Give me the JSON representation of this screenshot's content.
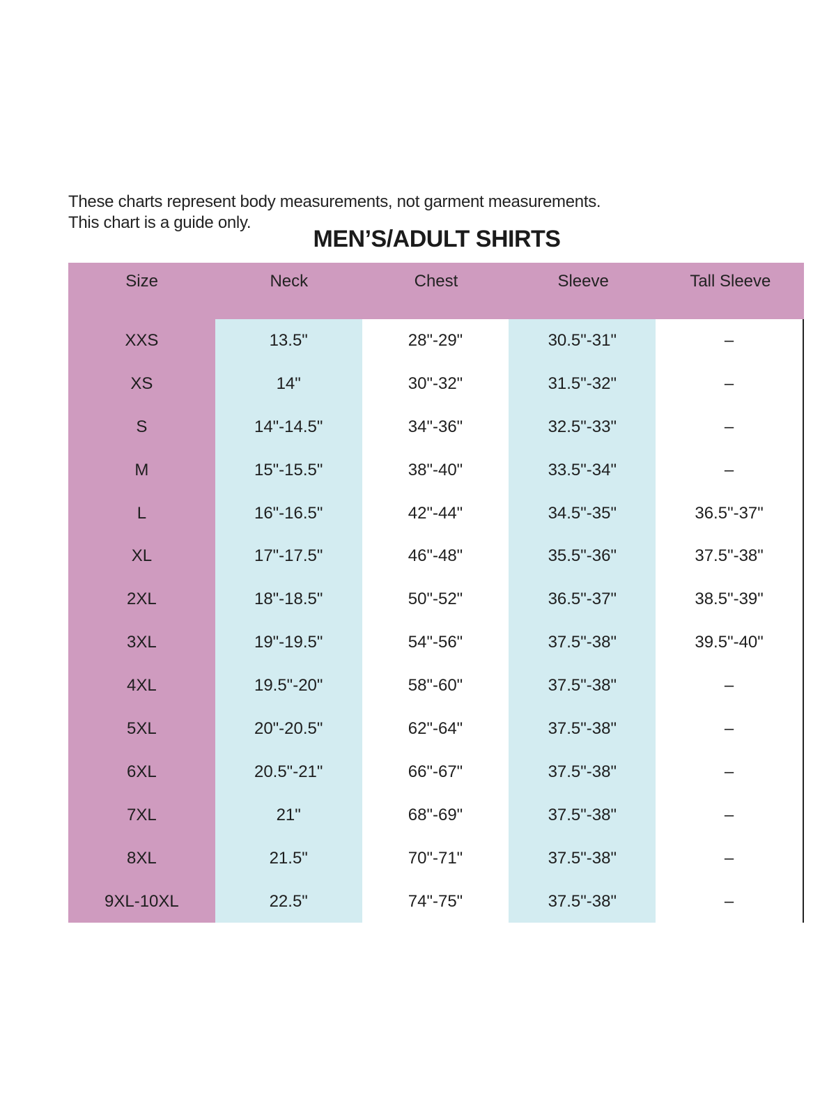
{
  "notes": [
    "These charts represent body measurements, not garment measurements.",
    "This chart is a guide only."
  ],
  "title": "MEN’S/ADULT SHIRTS",
  "colors": {
    "header_and_size_column": "#cf9bbf",
    "neck_and_sleeve_columns": "#d3ecf1"
  },
  "columns": [
    "Size",
    "Neck",
    "Chest",
    "Sleeve",
    "Tall Sleeve"
  ],
  "rows": [
    [
      "XXS",
      "13.5\"",
      "28\"-29\"",
      "30.5\"-31\"",
      "–"
    ],
    [
      "XS",
      "14\"",
      "30\"-32\"",
      "31.5\"-32\"",
      "–"
    ],
    [
      "S",
      "14\"-14.5\"",
      "34\"-36\"",
      "32.5\"-33\"",
      "–"
    ],
    [
      "M",
      "15\"-15.5\"",
      "38\"-40\"",
      "33.5\"-34\"",
      "–"
    ],
    [
      "L",
      "16\"-16.5\"",
      "42\"-44\"",
      "34.5\"-35\"",
      "36.5\"-37\""
    ],
    [
      "XL",
      "17\"-17.5\"",
      "46\"-48\"",
      "35.5\"-36\"",
      "37.5\"-38\""
    ],
    [
      "2XL",
      "18\"-18.5\"",
      "50\"-52\"",
      "36.5\"-37\"",
      "38.5\"-39\""
    ],
    [
      "3XL",
      "19\"-19.5\"",
      "54\"-56\"",
      "37.5\"-38\"",
      "39.5\"-40\""
    ],
    [
      "4XL",
      "19.5\"-20\"",
      "58\"-60\"",
      "37.5\"-38\"",
      "–"
    ],
    [
      "5XL",
      "20\"-20.5\"",
      "62\"-64\"",
      "37.5\"-38\"",
      "–"
    ],
    [
      "6XL",
      "20.5\"-21\"",
      "66\"-67\"",
      "37.5\"-38\"",
      "–"
    ],
    [
      "7XL",
      "21\"",
      "68\"-69\"",
      "37.5\"-38\"",
      "–"
    ],
    [
      "8XL",
      "21.5\"",
      "70\"-71\"",
      "37.5\"-38\"",
      "–"
    ],
    [
      "9XL-10XL",
      "22.5\"",
      "74\"-75\"",
      "37.5\"-38\"",
      "–"
    ]
  ]
}
